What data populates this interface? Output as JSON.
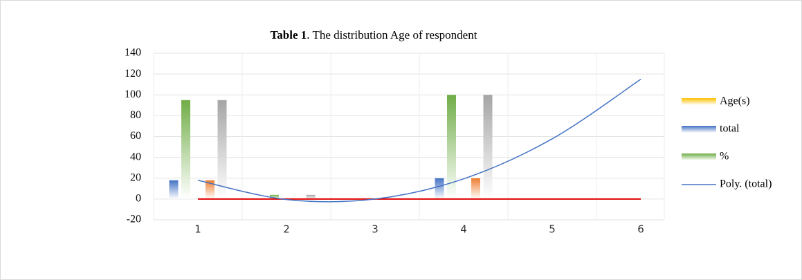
{
  "chart_data": {
    "type": "bar",
    "title": [
      "Table 1",
      ". The distribution Age of respondent"
    ],
    "categories": [
      "1",
      "2",
      "3",
      "4",
      "5",
      "6"
    ],
    "series": [
      {
        "name": "Age(s)",
        "color": "#ffc000",
        "values": [
          0,
          0,
          0,
          0,
          0,
          0
        ]
      },
      {
        "name": "total",
        "color": "#4472c4",
        "values": [
          18,
          0,
          0,
          20,
          0,
          0
        ]
      },
      {
        "name": "%",
        "color": "#70ad47",
        "values": [
          95,
          4,
          0,
          100,
          0,
          0
        ]
      },
      {
        "color": "#ed7d31",
        "values": [
          18,
          0,
          0,
          20,
          0,
          0
        ]
      },
      {
        "color": "#a5a5a5",
        "values": [
          95,
          4,
          0,
          100,
          0,
          0
        ]
      },
      {
        "type": "line",
        "color": "#e00000",
        "values": [
          0,
          0,
          0,
          0,
          0,
          0
        ]
      },
      {
        "type": "line",
        "name": "Poly. (total)",
        "color": "#4472c4",
        "values": [
          18,
          -0.5,
          0,
          19.4,
          57.8,
          115
        ]
      }
    ],
    "ylim": [
      -20,
      140
    ],
    "yticks": [
      -20,
      0,
      20,
      40,
      60,
      80,
      100,
      120,
      140
    ],
    "grid": true
  }
}
